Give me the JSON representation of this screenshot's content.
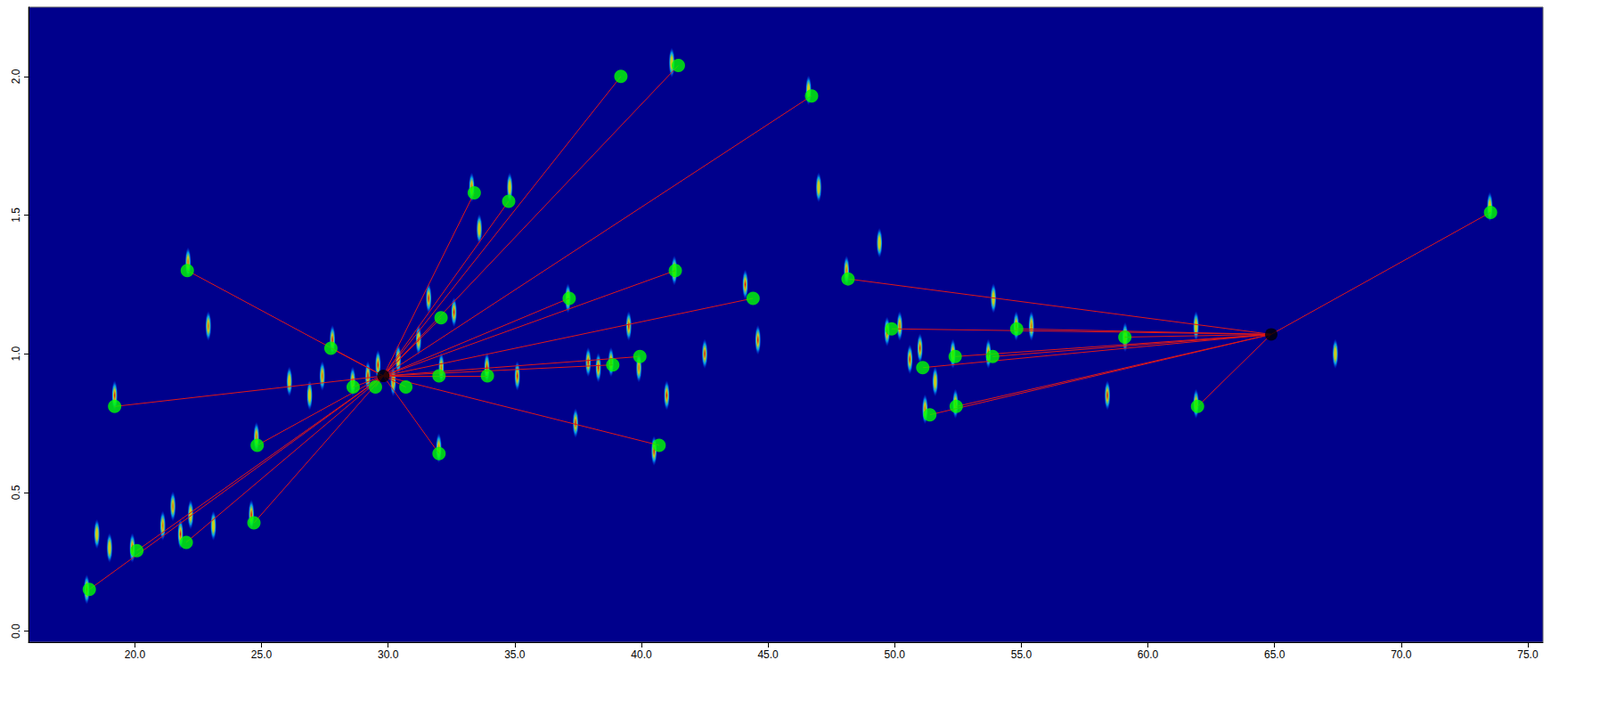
{
  "chart_data": {
    "type": "scatter",
    "xlim": [
      15.8,
      75.6
    ],
    "ylim": [
      -0.04,
      2.25
    ],
    "xticks": [
      {
        "value": 20,
        "label": "20.0"
      },
      {
        "value": 25,
        "label": "25.0"
      },
      {
        "value": 30,
        "label": "30.0"
      },
      {
        "value": 35,
        "label": "35.0"
      },
      {
        "value": 40,
        "label": "40.0"
      },
      {
        "value": 45,
        "label": "45.0"
      },
      {
        "value": 50,
        "label": "50.0"
      },
      {
        "value": 55,
        "label": "55.0"
      },
      {
        "value": 60,
        "label": "60.0"
      },
      {
        "value": 65,
        "label": "65.0"
      },
      {
        "value": 70,
        "label": "70.0"
      },
      {
        "value": 75,
        "label": "75.0"
      }
    ],
    "yticks": [
      {
        "value": 0,
        "label": "0.0"
      },
      {
        "value": 0.5,
        "label": "0.5"
      },
      {
        "value": 1,
        "label": "1.0"
      },
      {
        "value": 1.5,
        "label": "1.5"
      },
      {
        "value": 2,
        "label": "2.0"
      }
    ],
    "grid": false,
    "intensity_range": [
      0,
      1
    ],
    "peaks": [
      [
        18.1,
        0.15,
        1
      ],
      [
        18.5,
        0.35,
        0.6
      ],
      [
        19.0,
        0.3,
        0.5
      ],
      [
        19.9,
        0.3,
        0.9
      ],
      [
        21.1,
        0.38,
        0.8
      ],
      [
        21.5,
        0.45,
        0.7
      ],
      [
        21.8,
        0.35,
        1
      ],
      [
        22.2,
        0.42,
        0.6
      ],
      [
        23.1,
        0.38,
        0.5
      ],
      [
        24.6,
        0.42,
        0.9
      ],
      [
        19.2,
        0.85,
        0.9
      ],
      [
        22.1,
        1.33,
        0.8
      ],
      [
        22.9,
        1.1,
        0.7
      ],
      [
        24.8,
        0.7,
        0.8
      ],
      [
        26.1,
        0.9,
        0.6
      ],
      [
        26.9,
        0.85,
        0.5
      ],
      [
        27.4,
        0.92,
        0.7
      ],
      [
        27.8,
        1.05,
        0.9
      ],
      [
        28.6,
        0.9,
        0.8
      ],
      [
        29.2,
        0.92,
        1
      ],
      [
        29.6,
        0.96,
        1
      ],
      [
        30.2,
        0.9,
        0.8
      ],
      [
        30.4,
        0.98,
        0.6
      ],
      [
        31.2,
        1.05,
        0.7
      ],
      [
        31.6,
        1.2,
        0.9
      ],
      [
        32.0,
        0.66,
        0.8
      ],
      [
        32.1,
        0.95,
        0.7
      ],
      [
        32.6,
        1.15,
        0.9
      ],
      [
        33.3,
        1.6,
        0.8
      ],
      [
        33.6,
        1.45,
        0.6
      ],
      [
        33.9,
        0.95,
        0.9
      ],
      [
        34.8,
        1.6,
        0.5
      ],
      [
        35.1,
        0.92,
        1
      ],
      [
        37.1,
        1.2,
        0.6
      ],
      [
        37.4,
        0.75,
        0.9
      ],
      [
        37.9,
        0.97,
        1
      ],
      [
        38.3,
        0.95,
        0.9
      ],
      [
        38.8,
        0.97,
        1
      ],
      [
        39.5,
        1.1,
        0.9
      ],
      [
        39.9,
        0.95,
        0.8
      ],
      [
        40.5,
        0.65,
        1
      ],
      [
        41.0,
        0.85,
        0.9
      ],
      [
        41.3,
        1.3,
        0.7
      ],
      [
        41.2,
        2.05,
        0.6
      ],
      [
        42.5,
        1.0,
        1
      ],
      [
        44.1,
        1.25,
        0.9
      ],
      [
        44.6,
        1.05,
        0.9
      ],
      [
        46.6,
        1.95,
        0.5
      ],
      [
        47.0,
        1.6,
        0.5
      ],
      [
        48.1,
        1.3,
        0.8
      ],
      [
        49.4,
        1.4,
        0.6
      ],
      [
        49.7,
        1.08,
        1
      ],
      [
        50.2,
        1.1,
        0.8
      ],
      [
        50.6,
        0.98,
        1
      ],
      [
        51.0,
        1.02,
        0.9
      ],
      [
        51.2,
        0.8,
        0.8
      ],
      [
        51.6,
        0.9,
        0.6
      ],
      [
        52.3,
        1.0,
        0.8
      ],
      [
        52.4,
        0.82,
        0.8
      ],
      [
        53.7,
        1.0,
        0.9
      ],
      [
        53.9,
        1.2,
        0.6
      ],
      [
        54.8,
        1.1,
        1
      ],
      [
        55.4,
        1.1,
        0.7
      ],
      [
        58.4,
        0.85,
        0.9
      ],
      [
        59.1,
        1.06,
        0.8
      ],
      [
        61.9,
        1.1,
        0.6
      ],
      [
        61.9,
        0.82,
        0.8
      ],
      [
        67.4,
        1.0,
        0.5
      ],
      [
        73.5,
        1.53,
        0.6
      ]
    ],
    "groups": [
      {
        "center": [
          29.81,
          0.92
        ],
        "color": "#00ff00",
        "points": [
          [
            18.2,
            0.15
          ],
          [
            20.08,
            0.29
          ],
          [
            22.03,
            0.32
          ],
          [
            24.7,
            0.39
          ],
          [
            24.83,
            0.67
          ],
          [
            19.2,
            0.81
          ],
          [
            22.07,
            1.3
          ],
          [
            27.74,
            1.02
          ],
          [
            28.62,
            0.88
          ],
          [
            29.5,
            0.88
          ],
          [
            30.7,
            0.88
          ],
          [
            32.09,
            1.13
          ],
          [
            32.01,
            0.92
          ],
          [
            32.01,
            0.64
          ],
          [
            33.4,
            1.58
          ],
          [
            34.76,
            1.55
          ],
          [
            33.92,
            0.92
          ],
          [
            39.19,
            2.0
          ],
          [
            41.46,
            2.04
          ],
          [
            37.15,
            1.2
          ],
          [
            38.87,
            0.96
          ],
          [
            39.94,
            0.99
          ],
          [
            40.7,
            0.67
          ],
          [
            41.34,
            1.3
          ],
          [
            44.41,
            1.2
          ],
          [
            46.72,
            1.93
          ]
        ]
      },
      {
        "center": [
          64.87,
          1.07
        ],
        "color": "#00ff00",
        "points": [
          [
            48.16,
            1.27
          ],
          [
            49.88,
            1.09
          ],
          [
            51.11,
            0.95
          ],
          [
            51.39,
            0.78
          ],
          [
            52.39,
            0.99
          ],
          [
            52.43,
            0.81
          ],
          [
            53.87,
            0.99
          ],
          [
            54.82,
            1.09
          ],
          [
            59.09,
            1.06
          ],
          [
            61.96,
            0.81
          ],
          [
            73.53,
            1.51
          ]
        ]
      }
    ]
  }
}
